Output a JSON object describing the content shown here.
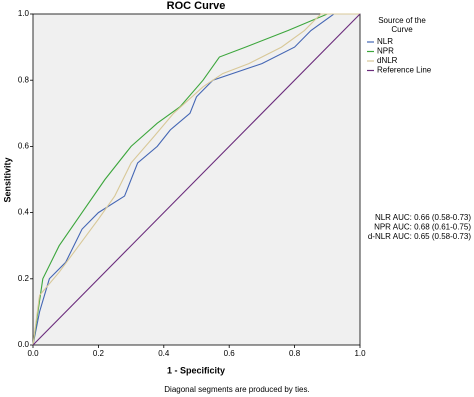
{
  "chart_data": {
    "type": "line",
    "title": "ROC Curve",
    "x_label": "1 - Specificity",
    "y_label": "Sensitivity",
    "footnote": "Diagonal segments are produced by ties.",
    "legend_title": "Source of the Curve",
    "legend": "right",
    "xlim": [
      0,
      1
    ],
    "ylim": [
      0,
      1
    ],
    "xticks": [
      {
        "value": 0,
        "label": "0.0"
      },
      0.2,
      0.4,
      0.6,
      0.8,
      {
        "value": 1,
        "label": "1.0"
      }
    ],
    "yticks": [
      {
        "value": 0,
        "label": "0.0"
      },
      0.2,
      0.4,
      0.6,
      0.8,
      {
        "value": 1,
        "label": "1.0"
      }
    ],
    "series": [
      {
        "name": "NLR",
        "color": "#4466b4",
        "x": [
          0,
          0.02,
          0.05,
          0.1,
          0.15,
          0.2,
          0.28,
          0.32,
          0.38,
          0.42,
          0.48,
          0.5,
          0.55,
          0.7,
          0.8,
          0.85,
          0.92,
          1
        ],
        "values": [
          0,
          0.1,
          0.2,
          0.25,
          0.35,
          0.4,
          0.45,
          0.55,
          0.6,
          0.65,
          0.7,
          0.75,
          0.8,
          0.85,
          0.9,
          0.95,
          1,
          1
        ]
      },
      {
        "name": "NPR",
        "color": "#3ca63c",
        "x": [
          0,
          0.03,
          0.08,
          0.15,
          0.22,
          0.3,
          0.38,
          0.45,
          0.52,
          0.57,
          0.65,
          0.78,
          0.9,
          1
        ],
        "values": [
          0,
          0.2,
          0.3,
          0.4,
          0.5,
          0.6,
          0.67,
          0.72,
          0.8,
          0.87,
          0.9,
          0.95,
          1,
          1
        ]
      },
      {
        "name": "dNLR",
        "color": "#d8c898",
        "x": [
          0,
          0.02,
          0.08,
          0.14,
          0.2,
          0.25,
          0.3,
          0.37,
          0.43,
          0.52,
          0.58,
          0.66,
          0.76,
          0.83,
          0.88,
          1
        ],
        "values": [
          0,
          0.15,
          0.22,
          0.3,
          0.38,
          0.45,
          0.55,
          0.63,
          0.7,
          0.78,
          0.82,
          0.85,
          0.9,
          0.95,
          1,
          1
        ]
      },
      {
        "name": "Reference Line",
        "color": "#6b2c7c",
        "x": [
          0,
          1
        ],
        "values": [
          0,
          1
        ]
      }
    ],
    "annotations": [
      "NLR AUC: 0.66 (0.58-0.73)",
      "NPR AUC: 0.68 (0.61-0.75)",
      "d-NLR AUC: 0.65 (0.58-0.73)"
    ]
  }
}
